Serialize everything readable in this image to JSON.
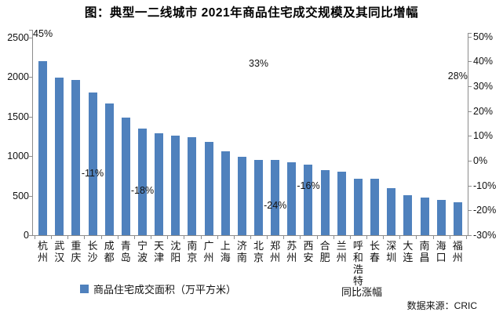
{
  "title": "图：典型一二线城市 2021年商品住宅成交规模及其同比增幅",
  "legend": {
    "bar_label": "商品住宅成交面积（万平方米）",
    "line_label": "同比涨幅"
  },
  "source": "数据来源：CRIC",
  "colors": {
    "bar": "#4F81BD",
    "axis": "#8c8c8c",
    "text": "#111111"
  },
  "chart_data": {
    "type": "bar",
    "title": "图：典型一二线城市 2021年商品住宅成交规模及其同比增幅",
    "categories": [
      "杭州",
      "武汉",
      "重庆",
      "长沙",
      "成都",
      "青岛",
      "宁波",
      "天津",
      "沈阳",
      "南京",
      "广州",
      "上海",
      "济南",
      "北京",
      "郑州",
      "苏州",
      "西安",
      "合肥",
      "兰州",
      "呼和浩特",
      "长春",
      "深圳",
      "大连",
      "南昌",
      "海口",
      "福州"
    ],
    "series": [
      {
        "name": "商品住宅成交面积（万平方米）",
        "type": "bar",
        "values": [
          2205,
          1995,
          1960,
          1805,
          1665,
          1490,
          1350,
          1290,
          1260,
          1245,
          1180,
          1060,
          995,
          950,
          955,
          920,
          890,
          820,
          805,
          715,
          715,
          595,
          505,
          480,
          450,
          420
        ]
      },
      {
        "name": "同比涨幅",
        "type": "line",
        "note": "line not drawn; only sparse data labels visible",
        "values_pct": [
          45,
          null,
          null,
          -11,
          null,
          null,
          -18,
          null,
          null,
          null,
          null,
          null,
          null,
          33,
          -24,
          null,
          -16,
          null,
          null,
          null,
          null,
          null,
          null,
          null,
          null,
          28
        ],
        "visible_labels": [
          "45%",
          null,
          null,
          "-11%",
          null,
          null,
          "-18%",
          null,
          null,
          null,
          null,
          null,
          null,
          "33%",
          "-24%",
          null,
          "-16%",
          null,
          null,
          null,
          null,
          null,
          null,
          null,
          null,
          "28%"
        ]
      }
    ],
    "left_axis": {
      "ticks": [
        "0",
        "500",
        "1000",
        "1500",
        "2000",
        "2500"
      ],
      "range": [
        0,
        2500
      ]
    },
    "right_axis": {
      "ticks": [
        "50%",
        "40%",
        "30%",
        "20%",
        "10%",
        "0%",
        "-10%",
        "-20%",
        "-30%"
      ],
      "range_pct": [
        -30,
        50
      ]
    },
    "grid": false,
    "legend_position": "bottom"
  }
}
